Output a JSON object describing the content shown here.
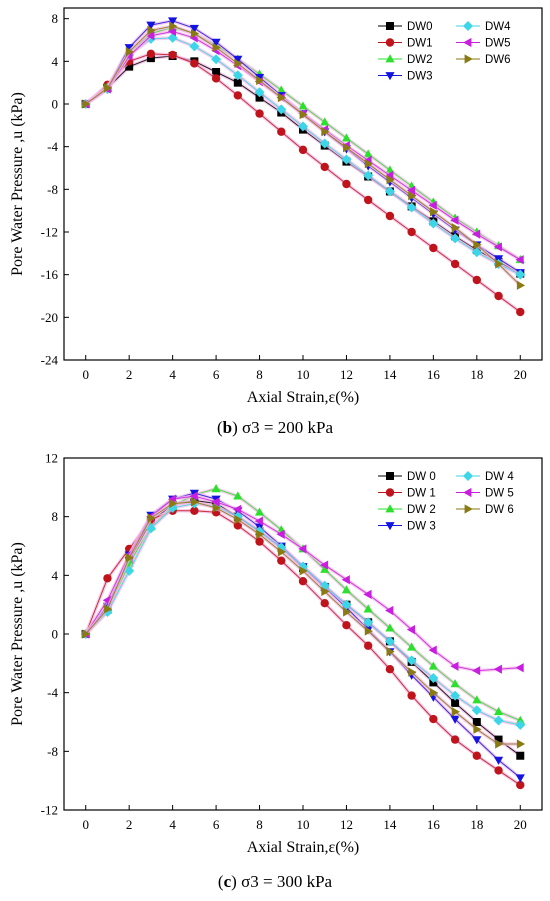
{
  "charts": [
    {
      "id": "b",
      "caption_letter": "b",
      "caption_text": "σ3 = 200 kPa",
      "chart_data": {
        "type": "line",
        "xlabel": "Axial Strain,ε(%)",
        "ylabel": "Pore Water Pressure ,u (kPa)",
        "xlim": [
          -1,
          21
        ],
        "ylim": [
          -24,
          9
        ],
        "xticks": [
          0,
          2,
          4,
          6,
          8,
          10,
          12,
          14,
          16,
          18,
          20
        ],
        "yticks": [
          -24,
          -20,
          -16,
          -12,
          -8,
          -4,
          0,
          4,
          8
        ],
        "legend_position": "top-right",
        "series": [
          {
            "name": "DW0",
            "marker": "square",
            "color": "#000000",
            "x": [
              0,
              1,
              2,
              3,
              4,
              5,
              6,
              7,
              8,
              9,
              10,
              11,
              12,
              13,
              14,
              15,
              16,
              17,
              18,
              19,
              20
            ],
            "y": [
              0,
              1.5,
              3.5,
              4.3,
              4.5,
              4,
              3,
              2,
              0.6,
              -0.8,
              -2.4,
              -3.9,
              -5.4,
              -6.8,
              -8.2,
              -9.6,
              -11,
              -12.4,
              -13.7,
              -14.8,
              -15.9
            ]
          },
          {
            "name": "DW1",
            "marker": "circle",
            "color": "#c0141c",
            "x": [
              0,
              1,
              2,
              3,
              4,
              5,
              6,
              7,
              8,
              9,
              10,
              11,
              12,
              13,
              14,
              15,
              16,
              17,
              18,
              19,
              20
            ],
            "y": [
              0,
              1.8,
              4,
              4.7,
              4.6,
              3.8,
              2.4,
              0.8,
              -0.9,
              -2.6,
              -4.3,
              -5.9,
              -7.5,
              -9,
              -10.5,
              -12,
              -13.5,
              -15,
              -16.5,
              -18,
              -19.5
            ]
          },
          {
            "name": "DW2",
            "marker": "triangle-up",
            "color": "#2ee02e",
            "x": [
              0,
              1,
              2,
              3,
              4,
              5,
              6,
              7,
              8,
              9,
              10,
              11,
              12,
              13,
              14,
              15,
              16,
              17,
              18,
              19,
              20
            ],
            "y": [
              0,
              1.6,
              4.8,
              6.6,
              7.2,
              6.6,
              5.5,
              4.2,
              2.8,
              1.3,
              -0.2,
              -1.7,
              -3.2,
              -4.7,
              -6.2,
              -7.7,
              -9.2,
              -10.7,
              -12,
              -13.3,
              -14.6
            ]
          },
          {
            "name": "DW3",
            "marker": "triangle-down",
            "color": "#1414e0",
            "x": [
              0,
              1,
              2,
              3,
              4,
              5,
              6,
              7,
              8,
              9,
              10,
              11,
              12,
              13,
              14,
              15,
              16,
              17,
              18,
              19,
              20
            ],
            "y": [
              0,
              1.5,
              5.3,
              7.4,
              7.8,
              7.1,
              5.8,
              4.2,
              2.5,
              0.8,
              -0.9,
              -2.6,
              -4.2,
              -5.8,
              -7.3,
              -8.8,
              -10.3,
              -11.8,
              -13.2,
              -14.5,
              -15.8
            ]
          },
          {
            "name": "DW4",
            "marker": "diamond",
            "color": "#3cd6e8",
            "x": [
              0,
              1,
              2,
              3,
              4,
              5,
              6,
              7,
              8,
              9,
              10,
              11,
              12,
              13,
              14,
              15,
              16,
              17,
              18,
              19,
              20
            ],
            "y": [
              0,
              1.4,
              4.6,
              6.1,
              6.2,
              5.4,
              4.2,
              2.7,
              1.1,
              -0.5,
              -2.1,
              -3.7,
              -5.2,
              -6.7,
              -8.2,
              -9.7,
              -11.2,
              -12.6,
              -13.9,
              -15,
              -16
            ]
          },
          {
            "name": "DW5",
            "marker": "triangle-left",
            "color": "#c81ee0",
            "x": [
              0,
              1,
              2,
              3,
              4,
              5,
              6,
              7,
              8,
              9,
              10,
              11,
              12,
              13,
              14,
              15,
              16,
              17,
              18,
              19,
              20
            ],
            "y": [
              0,
              1.4,
              4.5,
              6.4,
              6.8,
              6.2,
              5,
              3.6,
              2.1,
              0.6,
              -0.9,
              -2.4,
              -3.9,
              -5.3,
              -6.7,
              -8.1,
              -9.5,
              -10.9,
              -12.2,
              -13.4,
              -14.6
            ]
          },
          {
            "name": "DW6",
            "marker": "triangle-right",
            "color": "#8a7a12",
            "x": [
              0,
              1,
              2,
              3,
              4,
              5,
              6,
              7,
              8,
              9,
              10,
              11,
              12,
              13,
              14,
              15,
              16,
              17,
              18,
              19,
              20
            ],
            "y": [
              0,
              1.5,
              4.9,
              6.9,
              7.3,
              6.6,
              5.3,
              3.8,
              2.2,
              0.6,
              -1,
              -2.6,
              -4.1,
              -5.6,
              -7.1,
              -8.6,
              -10.1,
              -11.6,
              -13.2,
              -15,
              -17
            ]
          }
        ]
      }
    },
    {
      "id": "c",
      "caption_letter": "c",
      "caption_text": "σ3 = 300 kPa",
      "chart_data": {
        "type": "line",
        "xlabel": "Axial Strain,ε(%)",
        "ylabel": "Pore Water Pressure ,u (kPa)",
        "xlim": [
          -1,
          21
        ],
        "ylim": [
          -12,
          12
        ],
        "xticks": [
          0,
          2,
          4,
          6,
          8,
          10,
          12,
          14,
          16,
          18,
          20
        ],
        "yticks": [
          -12,
          -8,
          -4,
          0,
          4,
          8,
          12
        ],
        "legend_position": "top-right",
        "series": [
          {
            "name": "DW 0",
            "marker": "square",
            "color": "#000000",
            "x": [
              0,
              1,
              2,
              3,
              4,
              5,
              6,
              7,
              8,
              9,
              10,
              11,
              12,
              13,
              14,
              15,
              16,
              17,
              18,
              19,
              20
            ],
            "y": [
              0,
              1.8,
              5,
              7.7,
              8.8,
              9.1,
              8.9,
              8,
              7,
              5.9,
              4.5,
              3.2,
              2,
              0.8,
              -0.5,
              -1.9,
              -3.3,
              -4.7,
              -6,
              -7.2,
              -8.3
            ]
          },
          {
            "name": "DW 1",
            "marker": "circle",
            "color": "#c0141c",
            "x": [
              0,
              1,
              2,
              3,
              4,
              5,
              6,
              7,
              8,
              9,
              10,
              11,
              12,
              13,
              14,
              15,
              16,
              17,
              18,
              19,
              20
            ],
            "y": [
              0,
              3.8,
              5.8,
              7.8,
              8.4,
              8.4,
              8.3,
              7.4,
              6.3,
              5,
              3.6,
              2.1,
              0.6,
              -0.8,
              -2.4,
              -4.2,
              -5.8,
              -7.2,
              -8.3,
              -9.3,
              -10.3
            ]
          },
          {
            "name": "DW 2",
            "marker": "triangle-up",
            "color": "#2ee02e",
            "x": [
              0,
              1,
              2,
              3,
              4,
              5,
              6,
              7,
              8,
              9,
              10,
              11,
              12,
              13,
              14,
              15,
              16,
              17,
              18,
              19,
              20
            ],
            "y": [
              0,
              1.6,
              4.8,
              7.3,
              8.7,
              9.5,
              9.9,
              9.4,
              8.3,
              7.1,
              5.8,
              4.4,
              3,
              1.7,
              0.4,
              -0.9,
              -2.2,
              -3.4,
              -4.5,
              -5.3,
              -5.9
            ]
          },
          {
            "name": "DW 3",
            "marker": "triangle-down",
            "color": "#1414e0",
            "x": [
              0,
              1,
              2,
              3,
              4,
              5,
              6,
              7,
              8,
              9,
              10,
              11,
              12,
              13,
              14,
              15,
              16,
              17,
              18,
              19,
              20
            ],
            "y": [
              0,
              1.9,
              5.4,
              8.1,
              9.2,
              9.6,
              9.2,
              8.4,
              7.3,
              6,
              4.6,
              3.2,
              1.8,
              0.3,
              -1.2,
              -2.8,
              -4.3,
              -5.8,
              -7.2,
              -8.6,
              -9.8
            ]
          },
          {
            "name": "DW 4",
            "marker": "diamond",
            "color": "#3cd6e8",
            "x": [
              0,
              1,
              2,
              3,
              4,
              5,
              6,
              7,
              8,
              9,
              10,
              11,
              12,
              13,
              14,
              15,
              16,
              17,
              18,
              19,
              20
            ],
            "y": [
              0,
              1.5,
              4.3,
              7.2,
              8.6,
              8.9,
              8.7,
              8,
              7,
              5.9,
              4.6,
              3.3,
              2,
              0.8,
              -0.5,
              -1.8,
              -3,
              -4.2,
              -5.2,
              -5.9,
              -6.2
            ]
          },
          {
            "name": "DW 5",
            "marker": "triangle-left",
            "color": "#c81ee0",
            "x": [
              0,
              1,
              2,
              3,
              4,
              5,
              6,
              7,
              8,
              9,
              10,
              11,
              12,
              13,
              14,
              15,
              16,
              17,
              18,
              19,
              20
            ],
            "y": [
              0,
              2.3,
              5.4,
              8,
              9.2,
              9.4,
              9,
              8.5,
              7.7,
              6.8,
              5.8,
              4.7,
              3.7,
              2.7,
              1.6,
              0.3,
              -1.1,
              -2.2,
              -2.5,
              -2.4,
              -2.3
            ]
          },
          {
            "name": "DW 6",
            "marker": "triangle-right",
            "color": "#8a7a12",
            "x": [
              0,
              1,
              2,
              3,
              4,
              5,
              6,
              7,
              8,
              9,
              10,
              11,
              12,
              13,
              14,
              15,
              16,
              17,
              18,
              19,
              20
            ],
            "y": [
              0,
              1.7,
              5.2,
              7.9,
              8.9,
              9,
              8.6,
              7.8,
              6.8,
              5.6,
              4.3,
              2.9,
              1.5,
              0.2,
              -1.2,
              -2.6,
              -4,
              -5.3,
              -6.5,
              -7.5,
              -7.5
            ]
          }
        ]
      }
    }
  ]
}
